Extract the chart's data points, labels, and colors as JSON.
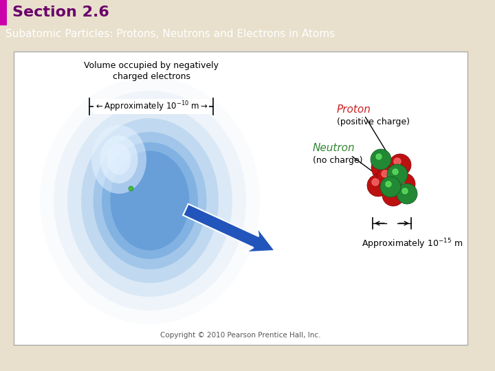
{
  "title": "Section 2.6",
  "subtitle": "Subatomic Particles: Protons, Neutrons and Electrons in Atoms",
  "title_color": "#6b006b",
  "title_bar_color": "#111111",
  "subtitle_color": "#ffffff",
  "bg_color": "#e8e0cc",
  "panel_bg": "#ffffff",
  "section_bar_color": "#cc00aa",
  "proton_label": "Proton",
  "proton_sub": "(positive charge)",
  "neutron_label": "Neutron",
  "neutron_sub": "(no charge)",
  "proton_color": "#cc2222",
  "neutron_color": "#338833",
  "atom_text_line1": "Volume occupied by negatively",
  "atom_text_line2": "charged electrons",
  "approx_atom_text": "Approximately 10",
  "approx_atom_exp": "-10",
  "approx_nuc_text": "Approximately 10",
  "approx_nuc_exp": "-15",
  "copyright": "Copyright © 2010 Pearson Prentice Hall, Inc."
}
